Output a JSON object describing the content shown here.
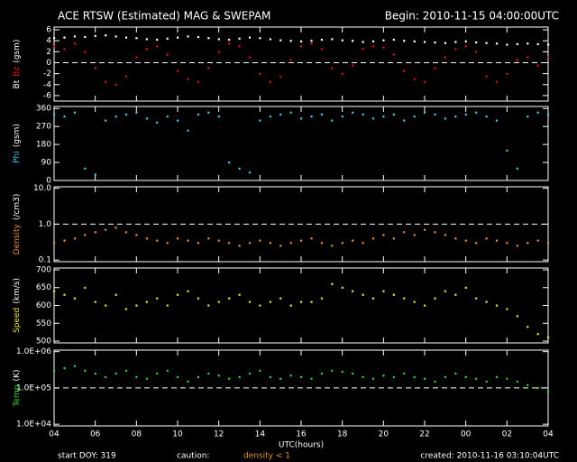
{
  "title": "ACE RTSW (Estimated) MAG & SWEPAM",
  "begin": "Begin: 2010-11-15 04:00:00UTC",
  "x_axis": {
    "label": "UTC(hours)",
    "xlim": [
      0,
      24
    ],
    "xticks": [
      {
        "value": 0,
        "label": "04"
      },
      {
        "value": 2,
        "label": "06"
      },
      {
        "value": 4,
        "label": "08"
      },
      {
        "value": 6,
        "label": "10"
      },
      {
        "value": 8,
        "label": "12"
      },
      {
        "value": 10,
        "label": "14"
      },
      {
        "value": 12,
        "label": "16"
      },
      {
        "value": 14,
        "label": "18"
      },
      {
        "value": 16,
        "label": "20"
      },
      {
        "value": 18,
        "label": "22"
      },
      {
        "value": 20,
        "label": "00"
      },
      {
        "value": 22,
        "label": "02"
      },
      {
        "value": 24,
        "label": "04"
      }
    ]
  },
  "footer": {
    "start": "start DOY: 319",
    "caution": "caution:",
    "density_note": "density < 1",
    "density_note_color": "#e8902c",
    "created": "created: 2010-11-16 03:10:04UTC"
  },
  "chart_data": [
    {
      "type": "scatter",
      "ylabel": [
        {
          "text": "Bt",
          "color": "#ffffff"
        },
        {
          "text": "Bz",
          "color": "#e01010"
        },
        {
          "text": "(gsm)",
          "color": "#ffffff"
        }
      ],
      "ylim": [
        -7,
        6.5
      ],
      "yticks": [
        -6,
        -4,
        -2,
        0,
        2,
        4,
        6
      ],
      "reference_line": 0,
      "x": [
        0,
        0.5,
        1,
        1.5,
        2,
        2.5,
        3,
        3.5,
        4,
        4.5,
        5,
        5.5,
        6,
        6.5,
        7,
        7.5,
        8,
        8.5,
        9,
        9.5,
        10,
        10.5,
        11,
        11.5,
        12,
        12.5,
        13,
        13.5,
        14,
        14.5,
        15,
        15.5,
        16,
        16.5,
        17,
        17.5,
        18,
        18.5,
        19,
        19.5,
        20,
        20.5,
        21,
        21.5,
        22,
        22.5,
        23,
        23.5,
        24
      ],
      "series": [
        {
          "name": "Bt",
          "color": "#ffffff",
          "values": [
            4.5,
            4.6,
            4.8,
            4.7,
            4.9,
            5.0,
            4.8,
            4.6,
            4.5,
            4.3,
            4.2,
            4.4,
            4.6,
            4.8,
            4.7,
            4.5,
            4.3,
            4.2,
            4.4,
            4.6,
            4.5,
            4.3,
            4.1,
            4.0,
            3.9,
            4.0,
            4.2,
            4.3,
            4.1,
            4.0,
            3.8,
            3.9,
            4.1,
            4.2,
            4.0,
            3.9,
            3.8,
            3.7,
            3.6,
            3.8,
            3.9,
            3.7,
            3.6,
            3.5,
            3.3,
            3.4,
            3.5,
            3.4,
            3.3
          ]
        },
        {
          "name": "Bz",
          "color": "#e01010",
          "values": [
            3.0,
            2.5,
            3.5,
            2.0,
            -1.0,
            -3.5,
            -4.0,
            -2.5,
            1.0,
            2.5,
            3.0,
            1.5,
            -1.5,
            -3.0,
            -3.5,
            -1.0,
            2.0,
            3.5,
            3.0,
            1.0,
            -2.0,
            -3.5,
            -2.5,
            0.5,
            3.0,
            3.5,
            2.5,
            -1.0,
            -2.0,
            -0.5,
            2.5,
            3.0,
            2.8,
            1.5,
            -1.5,
            -3.0,
            -3.5,
            -1.0,
            1.0,
            2.5,
            3.0,
            2.0,
            -2.5,
            -3.5,
            -2.0,
            0.5,
            1.0,
            -0.5,
            1.0
          ]
        }
      ]
    },
    {
      "type": "scatter",
      "ylabel": [
        {
          "text": "Phi",
          "color": "#3cc8e6"
        },
        {
          "text": "(gsm)",
          "color": "#ffffff"
        }
      ],
      "ylim": [
        0,
        370
      ],
      "yticks": [
        0,
        90,
        180,
        270,
        360
      ],
      "x": [
        0,
        0.5,
        1,
        1.5,
        2,
        2.5,
        3,
        3.5,
        4,
        4.5,
        5,
        5.5,
        6,
        6.5,
        7,
        7.5,
        8,
        8.5,
        9,
        9.5,
        10,
        10.5,
        11,
        11.5,
        12,
        12.5,
        13,
        13.5,
        14,
        14.5,
        15,
        15.5,
        16,
        16.5,
        17,
        17.5,
        18,
        18.5,
        19,
        19.5,
        20,
        20.5,
        21,
        21.5,
        22,
        22.5,
        23,
        23.5,
        24
      ],
      "series": [
        {
          "name": "Phi",
          "color": "#3cc8e6",
          "values": [
            330,
            320,
            340,
            60,
            30,
            300,
            320,
            330,
            340,
            310,
            290,
            320,
            300,
            250,
            330,
            340,
            320,
            90,
            60,
            40,
            300,
            320,
            330,
            340,
            310,
            320,
            330,
            300,
            320,
            340,
            330,
            310,
            320,
            330,
            300,
            320,
            340,
            330,
            310,
            320,
            330,
            340,
            320,
            300,
            150,
            60,
            320,
            340,
            330
          ]
        }
      ]
    },
    {
      "type": "scatter",
      "log": true,
      "ylabel": [
        {
          "text": "Density",
          "color": "#e8902c"
        },
        {
          "text": "(/cm3)",
          "color": "#ffffff"
        }
      ],
      "ylim": [
        0.09,
        11
      ],
      "yticks": [
        0.1,
        {
          "value": 1,
          "label": "1.0"
        },
        {
          "value": 10,
          "label": "10.0"
        }
      ],
      "reference_line": 1,
      "x": [
        0,
        0.5,
        1,
        1.5,
        2,
        2.5,
        3,
        3.5,
        4,
        4.5,
        5,
        5.5,
        6,
        6.5,
        7,
        7.5,
        8,
        8.5,
        9,
        9.5,
        10,
        10.5,
        11,
        11.5,
        12,
        12.5,
        13,
        13.5,
        14,
        14.5,
        15,
        15.5,
        16,
        16.5,
        17,
        17.5,
        18,
        18.5,
        19,
        19.5,
        20,
        20.5,
        21,
        21.5,
        22,
        22.5,
        23,
        23.5,
        24
      ],
      "series": [
        {
          "name": "Density",
          "color": "#e8902c",
          "values": [
            0.3,
            0.35,
            0.4,
            0.5,
            0.6,
            0.7,
            0.8,
            0.6,
            0.5,
            0.4,
            0.35,
            0.3,
            0.4,
            0.35,
            0.3,
            0.4,
            0.35,
            0.3,
            0.25,
            0.3,
            0.35,
            0.3,
            0.25,
            0.3,
            0.35,
            0.4,
            0.3,
            0.25,
            0.3,
            0.35,
            0.3,
            0.4,
            0.5,
            0.4,
            0.6,
            0.5,
            0.7,
            0.6,
            0.5,
            0.4,
            0.35,
            0.3,
            0.4,
            0.35,
            0.3,
            0.25,
            0.3,
            0.35,
            0.3
          ]
        }
      ]
    },
    {
      "type": "scatter",
      "ylabel": [
        {
          "text": "Speed",
          "color": "#e8e030"
        },
        {
          "text": "(km/s)",
          "color": "#ffffff"
        }
      ],
      "ylim": [
        495,
        705
      ],
      "yticks": [
        500,
        550,
        600,
        650,
        700
      ],
      "x": [
        0,
        0.5,
        1,
        1.5,
        2,
        2.5,
        3,
        3.5,
        4,
        4.5,
        5,
        5.5,
        6,
        6.5,
        7,
        7.5,
        8,
        8.5,
        9,
        9.5,
        10,
        10.5,
        11,
        11.5,
        12,
        12.5,
        13,
        13.5,
        14,
        14.5,
        15,
        15.5,
        16,
        16.5,
        17,
        17.5,
        18,
        18.5,
        19,
        19.5,
        20,
        20.5,
        21,
        21.5,
        22,
        22.5,
        23,
        23.5,
        24
      ],
      "series": [
        {
          "name": "Speed",
          "color": "#e8e030",
          "values": [
            640,
            630,
            620,
            650,
            610,
            600,
            630,
            590,
            600,
            610,
            620,
            600,
            630,
            640,
            620,
            600,
            610,
            620,
            630,
            610,
            600,
            610,
            620,
            600,
            610,
            610,
            620,
            660,
            650,
            640,
            630,
            620,
            640,
            630,
            620,
            610,
            600,
            620,
            640,
            630,
            650,
            620,
            610,
            600,
            590,
            570,
            540,
            520,
            510
          ]
        }
      ]
    },
    {
      "type": "scatter",
      "log": true,
      "ylabel": [
        {
          "text": "Temp",
          "color": "#30d030"
        },
        {
          "text": "(K)",
          "color": "#ffffff"
        }
      ],
      "ylim": [
        9000,
        1100000
      ],
      "yticks": [
        {
          "value": 10000,
          "label": "1.0E+04"
        },
        {
          "value": 100000,
          "label": "1.0E+05"
        },
        {
          "value": 1000000,
          "label": "1.0E+06"
        }
      ],
      "reference_line": 100000,
      "x": [
        0,
        0.5,
        1,
        1.5,
        2,
        2.5,
        3,
        3.5,
        4,
        4.5,
        5,
        5.5,
        6,
        6.5,
        7,
        7.5,
        8,
        8.5,
        9,
        9.5,
        10,
        10.5,
        11,
        11.5,
        12,
        12.5,
        13,
        13.5,
        14,
        14.5,
        15,
        15.5,
        16,
        16.5,
        17,
        17.5,
        18,
        18.5,
        19,
        19.5,
        20,
        20.5,
        21,
        21.5,
        22,
        22.5,
        23,
        23.5,
        24
      ],
      "series": [
        {
          "name": "Temp",
          "color": "#30d030",
          "values": [
            300000,
            350000,
            400000,
            300000,
            250000,
            200000,
            250000,
            300000,
            200000,
            180000,
            250000,
            300000,
            200000,
            150000,
            200000,
            250000,
            220000,
            180000,
            200000,
            250000,
            300000,
            200000,
            180000,
            220000,
            200000,
            180000,
            250000,
            300000,
            280000,
            250000,
            200000,
            180000,
            220000,
            200000,
            250000,
            200000,
            180000,
            150000,
            200000,
            250000,
            200000,
            180000,
            150000,
            200000,
            180000,
            150000,
            120000,
            100000,
            80000
          ]
        }
      ]
    }
  ]
}
